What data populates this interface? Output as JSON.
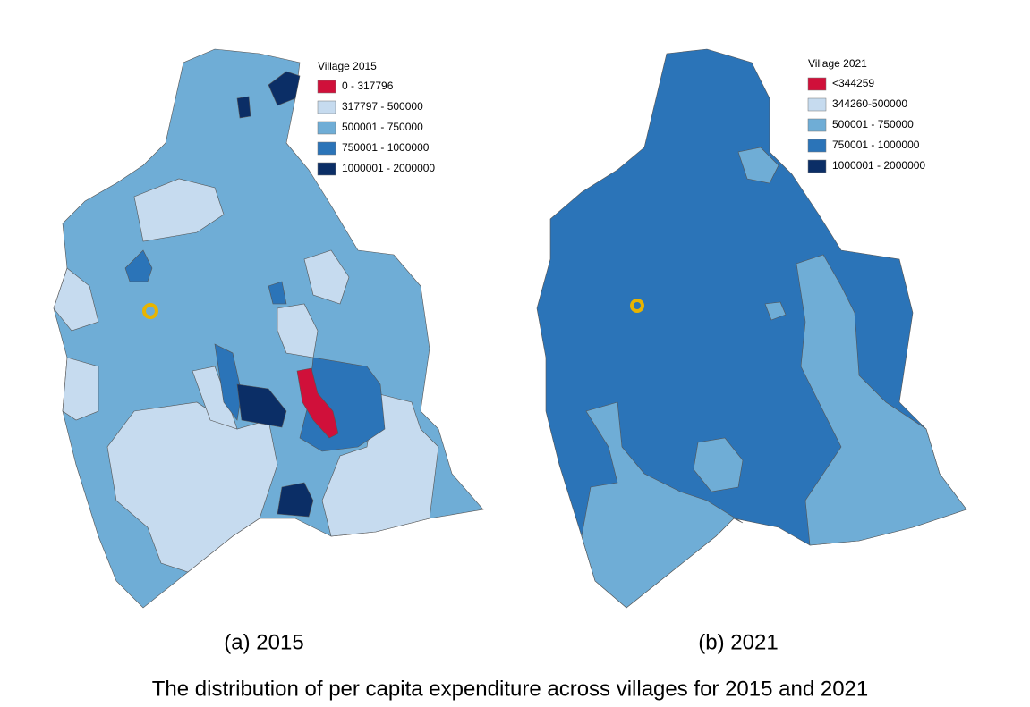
{
  "maps": [
    {
      "caption": "(a) 2015",
      "legend": {
        "title": "Village 2015",
        "items": [
          {
            "label": "0 - 317796",
            "color": "#d0103a"
          },
          {
            "label": "317797 - 500000",
            "color": "#c6dbef"
          },
          {
            "label": "500001 - 750000",
            "color": "#6fadd6"
          },
          {
            "label": "750001 - 1000000",
            "color": "#2b74b8"
          },
          {
            "label": "1000001 - 2000000",
            "color": "#0b2e66"
          }
        ]
      }
    },
    {
      "caption": "(b) 2021",
      "legend": {
        "title": "Village 2021",
        "items": [
          {
            "label": "<344259",
            "color": "#d0103a"
          },
          {
            "label": "344260-500000",
            "color": "#c6dbef"
          },
          {
            "label": "500001 - 750000",
            "color": "#6fadd6"
          },
          {
            "label": "750001 - 1000000",
            "color": "#2b74b8"
          },
          {
            "label": "1000001 - 2000000",
            "color": "#0b2e66"
          }
        ]
      }
    }
  ],
  "caption": "The distribution of per capita expenditure across villages for 2015 and 2021"
}
